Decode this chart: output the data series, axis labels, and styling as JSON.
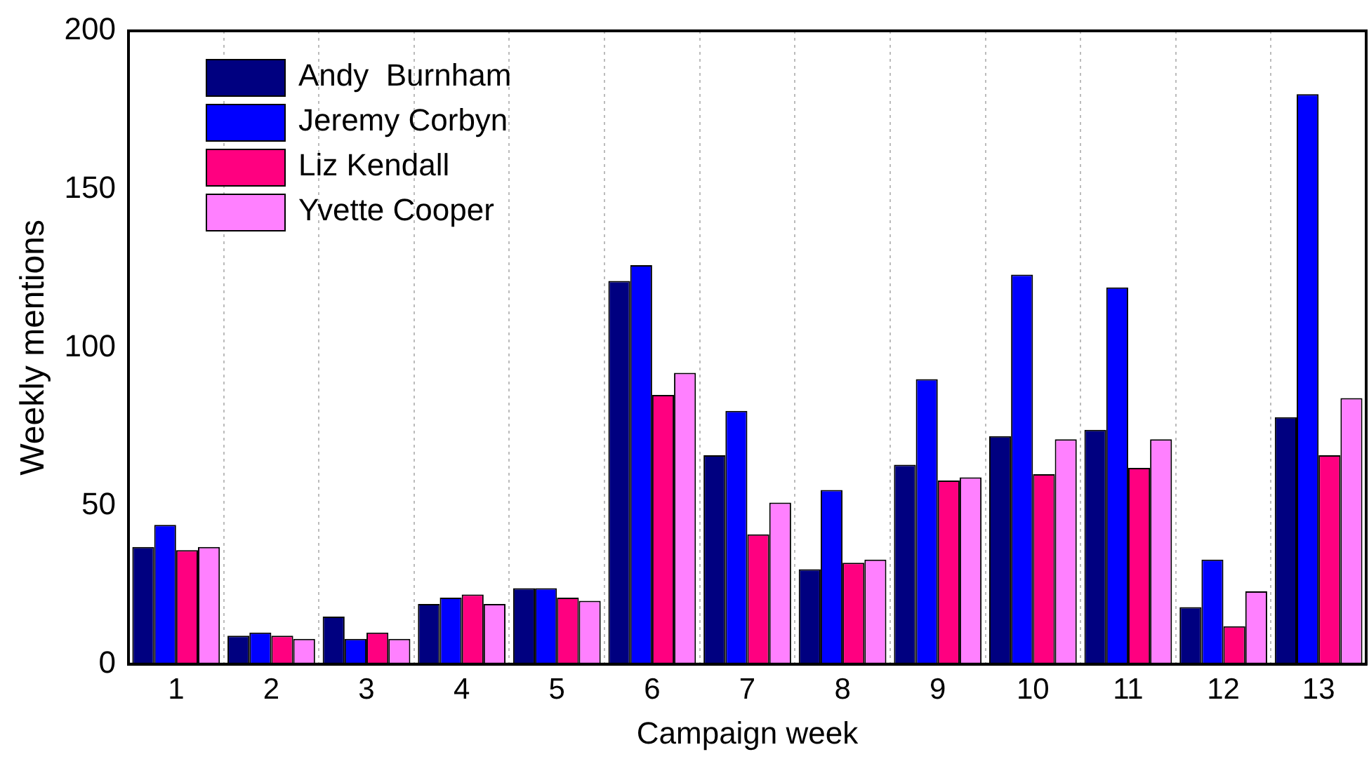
{
  "chart_data": {
    "type": "bar",
    "xlabel": "Campaign week",
    "ylabel": "Weekly mentions",
    "categories": [
      "1",
      "2",
      "3",
      "4",
      "5",
      "6",
      "7",
      "8",
      "9",
      "10",
      "11",
      "12",
      "13"
    ],
    "series": [
      {
        "name": "Andy  Burnham",
        "color": "#000080",
        "values": [
          37,
          9,
          15,
          19,
          24,
          121,
          66,
          30,
          63,
          72,
          74,
          18,
          78
        ]
      },
      {
        "name": "Jeremy Corbyn",
        "color": "#0000ff",
        "values": [
          44,
          10,
          8,
          21,
          24,
          126,
          80,
          55,
          90,
          123,
          119,
          33,
          180
        ]
      },
      {
        "name": "Liz Kendall",
        "color": "#ff0080",
        "values": [
          36,
          9,
          10,
          22,
          21,
          85,
          41,
          32,
          58,
          60,
          62,
          12,
          66
        ]
      },
      {
        "name": "Yvette Cooper",
        "color": "#ff80ff",
        "values": [
          37,
          8,
          8,
          19,
          20,
          92,
          51,
          33,
          59,
          71,
          71,
          23,
          84
        ]
      }
    ],
    "ylim": [
      0,
      200
    ],
    "yticks": [
      0,
      50,
      100,
      150,
      200
    ],
    "grid": "x",
    "legend": "top left"
  }
}
